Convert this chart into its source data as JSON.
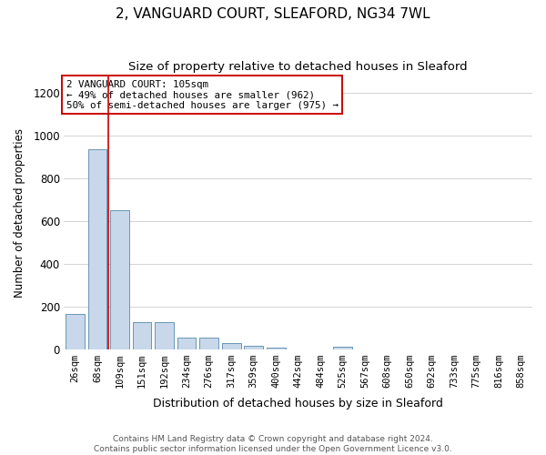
{
  "title1": "2, VANGUARD COURT, SLEAFORD, NG34 7WL",
  "title2": "Size of property relative to detached houses in Sleaford",
  "xlabel": "Distribution of detached houses by size in Sleaford",
  "ylabel": "Number of detached properties",
  "categories": [
    "26sqm",
    "68sqm",
    "109sqm",
    "151sqm",
    "192sqm",
    "234sqm",
    "276sqm",
    "317sqm",
    "359sqm",
    "400sqm",
    "442sqm",
    "484sqm",
    "525sqm",
    "567sqm",
    "608sqm",
    "650sqm",
    "692sqm",
    "733sqm",
    "775sqm",
    "816sqm",
    "858sqm"
  ],
  "values": [
    165,
    935,
    650,
    130,
    130,
    55,
    55,
    30,
    20,
    10,
    0,
    0,
    12,
    0,
    0,
    0,
    0,
    0,
    0,
    0,
    0
  ],
  "bar_color": "#c8d8ea",
  "bar_edge_color": "#5588aa",
  "grid_color": "#cccccc",
  "vline_x": 1.5,
  "vline_color": "#cc0000",
  "annotation_line1": "2 VANGUARD COURT: 105sqm",
  "annotation_line2": "← 49% of detached houses are smaller (962)",
  "annotation_line3": "50% of semi-detached houses are larger (975) →",
  "ylim": [
    0,
    1280
  ],
  "yticks": [
    0,
    200,
    400,
    600,
    800,
    1000,
    1200
  ],
  "footer_line1": "Contains HM Land Registry data © Crown copyright and database right 2024.",
  "footer_line2": "Contains public sector information licensed under the Open Government Licence v3.0."
}
